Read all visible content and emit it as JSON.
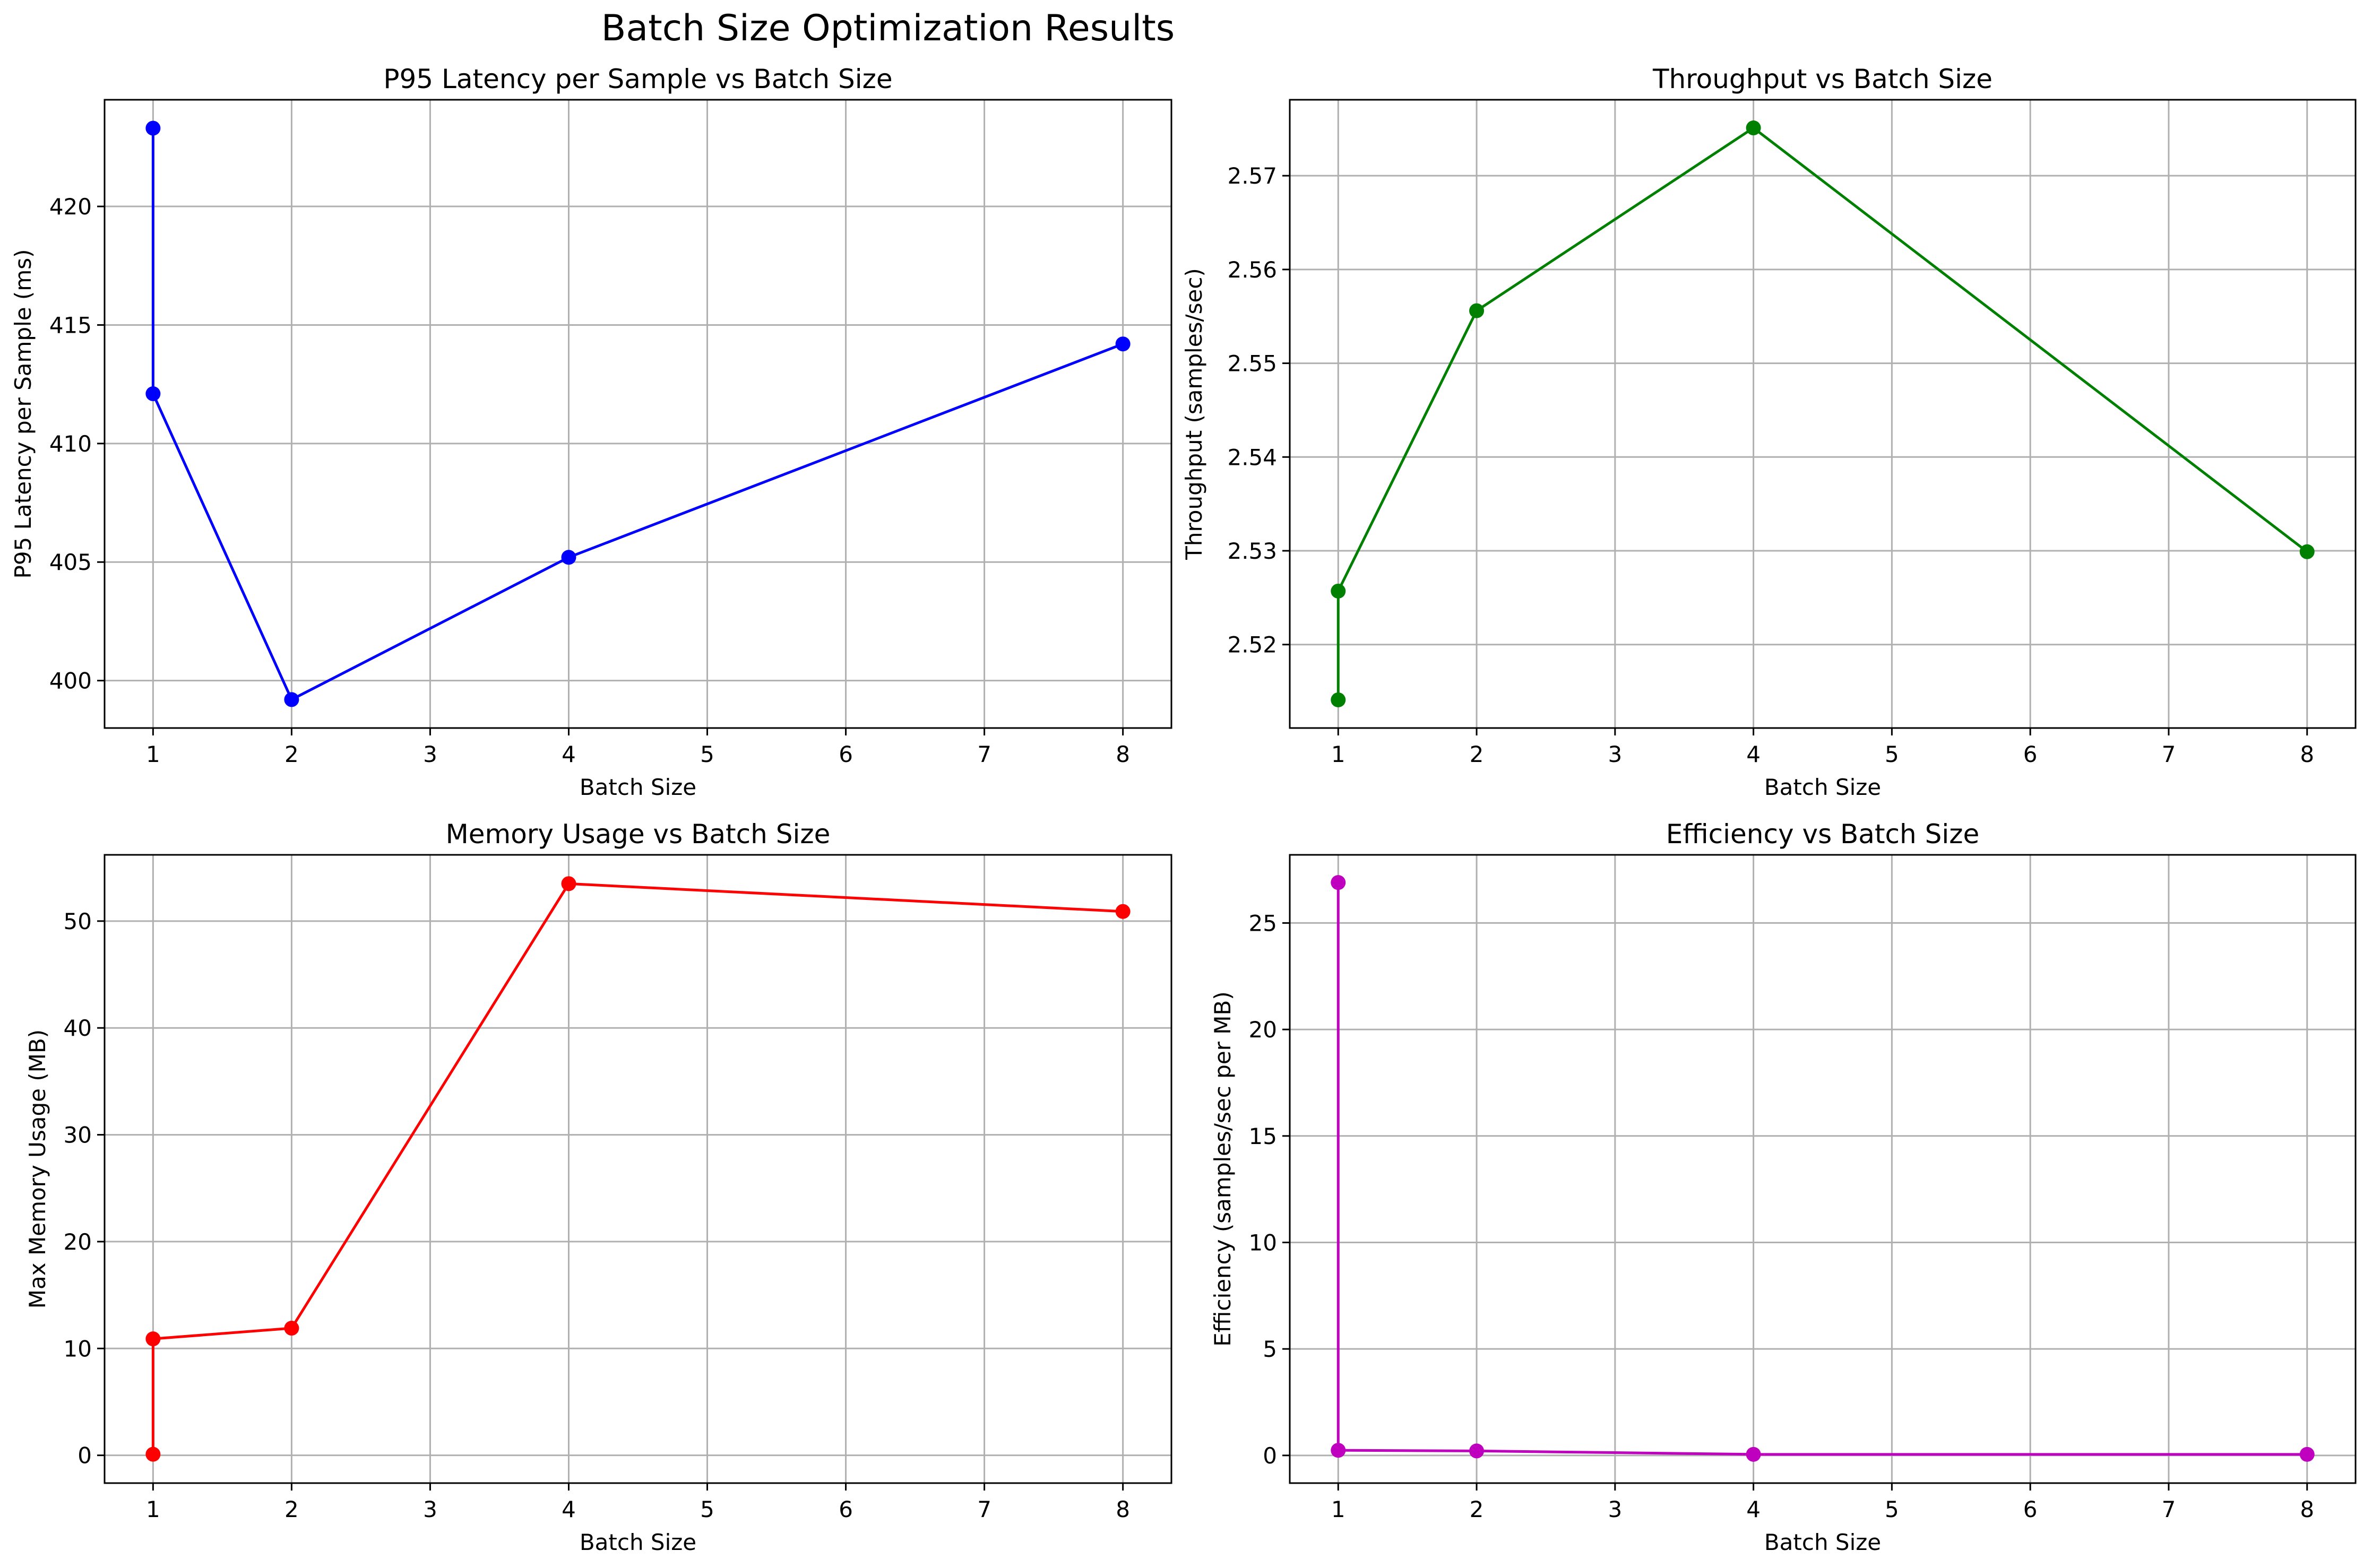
{
  "figure": {
    "suptitle": "Batch Size Optimization Results"
  },
  "chart_data": [
    {
      "type": "line",
      "title": "P95 Latency per Sample vs Batch Size",
      "xlabel": "Batch Size",
      "ylabel": "P95 Latency per Sample (ms)",
      "color": "#0000ff",
      "x": [
        1,
        1,
        2,
        4,
        8
      ],
      "y": [
        423.3,
        412.1,
        399.2,
        405.2,
        414.2
      ],
      "xlim": [
        0.65,
        8.35
      ],
      "ylim": [
        398.0,
        424.5
      ],
      "xticks": [
        1,
        2,
        3,
        4,
        5,
        6,
        7,
        8
      ],
      "yticks": [
        400,
        405,
        410,
        415,
        420
      ],
      "ytick_labels": [
        "400",
        "405",
        "410",
        "415",
        "420"
      ],
      "grid": true
    },
    {
      "type": "line",
      "title": "Throughput vs Batch Size",
      "xlabel": "Batch Size",
      "ylabel": "Throughput (samples/sec)",
      "color": "#008000",
      "x": [
        1,
        1,
        2,
        4,
        8
      ],
      "y": [
        2.5141,
        2.5257,
        2.5556,
        2.5751,
        2.5299
      ],
      "xlim": [
        0.65,
        8.35
      ],
      "ylim": [
        2.5111,
        2.5781
      ],
      "xticks": [
        1,
        2,
        3,
        4,
        5,
        6,
        7,
        8
      ],
      "yticks": [
        2.52,
        2.53,
        2.54,
        2.55,
        2.56,
        2.57
      ],
      "ytick_labels": [
        "2.52",
        "2.53",
        "2.54",
        "2.55",
        "2.56",
        "2.57"
      ],
      "grid": true
    },
    {
      "type": "line",
      "title": "Memory Usage vs Batch Size",
      "xlabel": "Batch Size",
      "ylabel": "Max Memory Usage (MB)",
      "color": "#ff0000",
      "x": [
        1,
        1,
        2,
        4,
        8
      ],
      "y": [
        0.1,
        10.9,
        11.9,
        53.5,
        50.9
      ],
      "xlim": [
        0.65,
        8.35
      ],
      "ylim": [
        -2.6,
        56.2
      ],
      "xticks": [
        1,
        2,
        3,
        4,
        5,
        6,
        7,
        8
      ],
      "yticks": [
        0,
        10,
        20,
        30,
        40,
        50
      ],
      "ytick_labels": [
        "0",
        "10",
        "20",
        "30",
        "40",
        "50"
      ],
      "grid": true
    },
    {
      "type": "line",
      "title": "Efficiency vs Batch Size",
      "xlabel": "Batch Size",
      "ylabel": "Efficiency (samples/sec per MB)",
      "color": "#bf00bf",
      "x": [
        1,
        1,
        2,
        4,
        8
      ],
      "y": [
        26.9,
        0.24,
        0.21,
        0.05,
        0.05
      ],
      "xlim": [
        0.65,
        8.35
      ],
      "ylim": [
        -1.3,
        28.2
      ],
      "xticks": [
        1,
        2,
        3,
        4,
        5,
        6,
        7,
        8
      ],
      "yticks": [
        0,
        5,
        10,
        15,
        20,
        25
      ],
      "ytick_labels": [
        "0",
        "5",
        "10",
        "15",
        "20",
        "25"
      ],
      "grid": true
    }
  ]
}
